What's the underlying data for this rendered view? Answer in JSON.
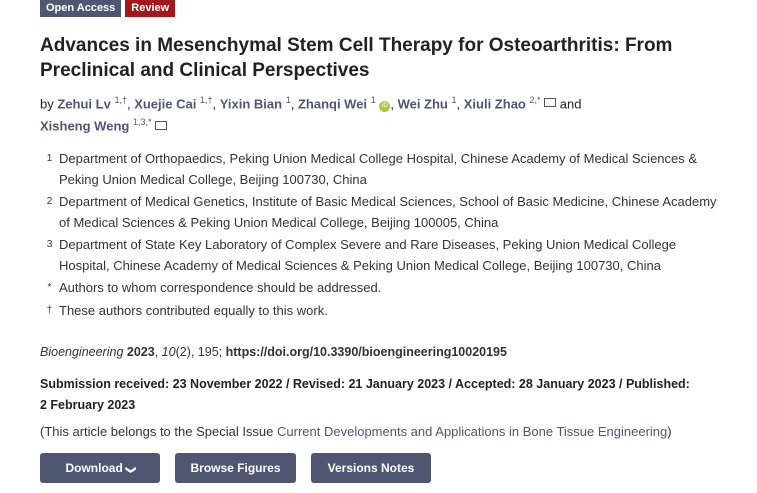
{
  "badges": {
    "open_access": "Open Access",
    "type": "Review"
  },
  "title": "Advances in Mesenchymal Stem Cell Therapy for Osteoarthritis: From Preclinical and Clinical Perspectives",
  "authors": {
    "by": "by",
    "and": "and",
    "list": [
      {
        "name": "Zehui Lv",
        "sup": "1,†"
      },
      {
        "name": "Xuejie Cai",
        "sup": "1,†"
      },
      {
        "name": "Yixin Bian",
        "sup": "1"
      },
      {
        "name": "Zhanqi Wei",
        "sup": "1"
      },
      {
        "name": "Wei Zhu",
        "sup": "1"
      },
      {
        "name": "Xiuli Zhao",
        "sup": "2,*"
      },
      {
        "name": "Xisheng Weng",
        "sup": "1,3,*"
      }
    ]
  },
  "affiliations": [
    {
      "n": "1",
      "text": "Department of Orthopaedics, Peking Union Medical College Hospital, Chinese Academy of Medical Sciences & Peking Union Medical College, Beijing 100730, China"
    },
    {
      "n": "2",
      "text": "Department of Medical Genetics, Institute of Basic Medical Sciences, School of Basic Medicine, Chinese Academy of Medical Sciences & Peking Union Medical College, Beijing 100005, China"
    },
    {
      "n": "3",
      "text": "Department of State Key Laboratory of Complex Severe and Rare Diseases, Peking Union Medical College Hospital, Chinese Academy of Medical Sciences & Peking Union Medical College, Beijing 100730, China"
    },
    {
      "n": "*",
      "text": "Authors to whom correspondence should be addressed."
    },
    {
      "n": "†",
      "text": "These authors contributed equally to this work."
    }
  ],
  "citation": {
    "journal": "Bioengineering",
    "year": "2023",
    "volume": "10",
    "issue": "(2), 195;",
    "doi": "https://doi.org/10.3390/bioengineering10020195"
  },
  "dates": {
    "text": "Submission received: 23 November 2022 / Revised: 21 January 2023 / Accepted: 28 January 2023 / Published: 2 February 2023"
  },
  "special_issue": {
    "prefix": "(This article belongs to the Special Issue ",
    "link": "Current Developments and Applications in Bone Tissue Engineering",
    "suffix": ")"
  },
  "buttons": {
    "download": "Download",
    "browse": "Browse Figures",
    "versions": "Versions Notes"
  }
}
